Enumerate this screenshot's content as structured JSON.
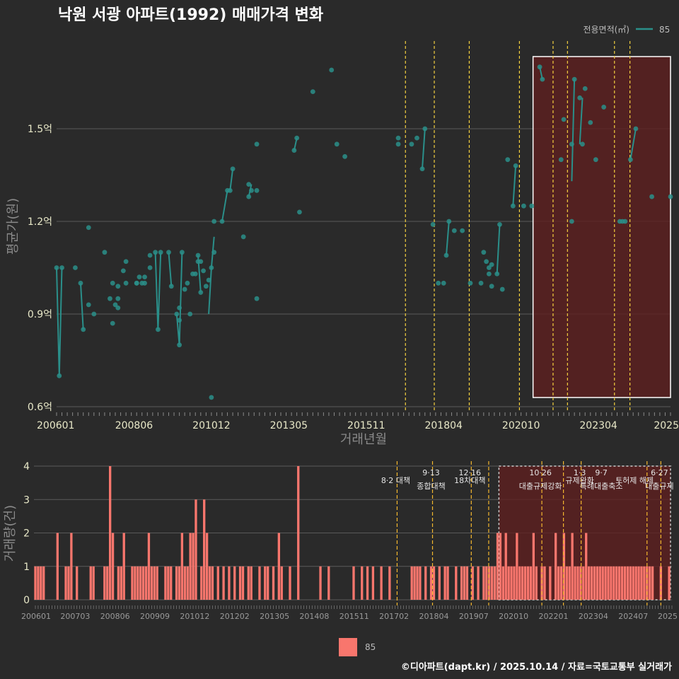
{
  "title": "낙원 서광 아파트(1992) 매매가격 변화",
  "footer": "©디아파트(dapt.kr) / 2025.10.14 / 자료=국토교통부 실거래가",
  "colors": {
    "price": "#2a8f8a",
    "volume": "#f8766d",
    "policy": "#f4d03f",
    "policy_lower": "#f5b82e",
    "highlight_fill": "#5e1f1f"
  },
  "chart_data": [
    {
      "type": "line",
      "name": "price",
      "xlabel": "거래년월",
      "ylabel": "평균가(원)",
      "ylim": [
        0.6,
        1.74
      ],
      "yticks": [
        {
          "v": 0.6,
          "label": "0.6억"
        },
        {
          "v": 0.9,
          "label": "0.9억"
        },
        {
          "v": 1.2,
          "label": "1.2억"
        },
        {
          "v": 1.5,
          "label": "1.5억"
        }
      ],
      "xticks": [
        "200601",
        "200806",
        "201012",
        "201305",
        "201511",
        "201804",
        "202010",
        "202304",
        "2025"
      ],
      "legend": {
        "title": "전용면적(㎡)",
        "series": "85"
      },
      "highlight": {
        "from": 178.5,
        "to": 230
      },
      "policy_lines": [
        130.7,
        141.5,
        154.6,
        173.4,
        186,
        191.4,
        209,
        214.8
      ],
      "points": [
        [
          0,
          1.05
        ],
        [
          1,
          0.7
        ],
        [
          2,
          1.05
        ],
        [
          7,
          1.05
        ],
        [
          9,
          1.0
        ],
        [
          10,
          0.85
        ],
        [
          12,
          1.18
        ],
        [
          12,
          0.93
        ],
        [
          14,
          0.9
        ],
        [
          18,
          1.1
        ],
        [
          20,
          0.95
        ],
        [
          21,
          1.0
        ],
        [
          21,
          0.87
        ],
        [
          22,
          0.93
        ],
        [
          23,
          0.99
        ],
        [
          23,
          0.95
        ],
        [
          23,
          0.92
        ],
        [
          25,
          1.04
        ],
        [
          26,
          1.07
        ],
        [
          26,
          1.0
        ],
        [
          30,
          1.0
        ],
        [
          30,
          1.0
        ],
        [
          31,
          1.02
        ],
        [
          32,
          1.0
        ],
        [
          33,
          1.0
        ],
        [
          33,
          1.02
        ],
        [
          35,
          1.05
        ],
        [
          35,
          1.09
        ],
        [
          37,
          1.1
        ],
        [
          38,
          0.85
        ],
        [
          39,
          1.1
        ],
        [
          42,
          1.1
        ],
        [
          43,
          0.99
        ],
        [
          45,
          0.9
        ],
        [
          46,
          0.92
        ],
        [
          46,
          0.88
        ],
        [
          46,
          0.8
        ],
        [
          47,
          1.1
        ],
        [
          48,
          0.98
        ],
        [
          49,
          1.0
        ],
        [
          50,
          0.9
        ],
        [
          51,
          1.03
        ],
        [
          52,
          1.03
        ],
        [
          53,
          1.09
        ],
        [
          53,
          1.07
        ],
        [
          54,
          1.07
        ],
        [
          54,
          0.97
        ],
        [
          55,
          1.04
        ],
        [
          56,
          0.99
        ],
        [
          57,
          1.01
        ],
        [
          58,
          1.05
        ],
        [
          58,
          0.63
        ],
        [
          59,
          1.2
        ],
        [
          59,
          1.1
        ],
        [
          62,
          1.2
        ],
        [
          64,
          1.3
        ],
        [
          65,
          1.3
        ],
        [
          66,
          1.37
        ],
        [
          70,
          1.15
        ],
        [
          72,
          1.28
        ],
        [
          72,
          1.32
        ],
        [
          73,
          1.3
        ],
        [
          75,
          1.3
        ],
        [
          75,
          1.45
        ],
        [
          75,
          0.95
        ],
        [
          89,
          1.43
        ],
        [
          90,
          1.47
        ],
        [
          91,
          1.23
        ],
        [
          96,
          1.62
        ],
        [
          103,
          1.69
        ],
        [
          105,
          1.45
        ],
        [
          108,
          1.41
        ],
        [
          128,
          1.45
        ],
        [
          128,
          1.47
        ],
        [
          133,
          1.45
        ],
        [
          135,
          1.47
        ],
        [
          137,
          1.37
        ],
        [
          138,
          1.5
        ],
        [
          141,
          1.19
        ],
        [
          143,
          1.0
        ],
        [
          145,
          1.0
        ],
        [
          146,
          1.09
        ],
        [
          147,
          1.2
        ],
        [
          149,
          1.17
        ],
        [
          152,
          1.17
        ],
        [
          155,
          1.0
        ],
        [
          159,
          1.0
        ],
        [
          160,
          1.1
        ],
        [
          161,
          1.07
        ],
        [
          162,
          1.05
        ],
        [
          162,
          1.03
        ],
        [
          163,
          1.06
        ],
        [
          163,
          0.99
        ],
        [
          165,
          1.03
        ],
        [
          166,
          1.19
        ],
        [
          167,
          0.98
        ],
        [
          169,
          1.4
        ],
        [
          171,
          1.25
        ],
        [
          172,
          1.38
        ],
        [
          175,
          1.25
        ],
        [
          178,
          1.25
        ],
        [
          181,
          1.7
        ],
        [
          182,
          1.66
        ],
        [
          189,
          1.4
        ],
        [
          190,
          1.53
        ],
        [
          193,
          1.45
        ],
        [
          193,
          1.2
        ],
        [
          194,
          1.66
        ],
        [
          196,
          1.6
        ],
        [
          197,
          1.45
        ],
        [
          198,
          1.63
        ],
        [
          200,
          1.52
        ],
        [
          202,
          1.4
        ],
        [
          205,
          1.57
        ],
        [
          211,
          1.2
        ],
        [
          212,
          1.2
        ],
        [
          213,
          1.2
        ],
        [
          215,
          1.4
        ],
        [
          217,
          1.5
        ],
        [
          223,
          1.28
        ],
        [
          230,
          1.28
        ]
      ],
      "lines": [
        [
          [
            0,
            1.05
          ],
          [
            1,
            0.7
          ],
          [
            2,
            1.05
          ]
        ],
        [
          [
            9,
            1.0
          ],
          [
            10,
            0.85
          ]
        ],
        [
          [
            37,
            1.1
          ],
          [
            38,
            0.85
          ],
          [
            39,
            1.1
          ]
        ],
        [
          [
            42,
            1.1
          ],
          [
            43,
            0.99
          ]
        ],
        [
          [
            45,
            0.9
          ],
          [
            46,
            0.8
          ],
          [
            47,
            1.1
          ]
        ],
        [
          [
            53,
            1.09
          ],
          [
            54,
            0.97
          ]
        ],
        [
          [
            57,
            0.9
          ],
          [
            58,
            1.05
          ],
          [
            59,
            1.15
          ]
        ],
        [
          [
            62,
            1.2
          ],
          [
            64,
            1.3
          ]
        ],
        [
          [
            65,
            1.3
          ],
          [
            66,
            1.37
          ]
        ],
        [
          [
            72,
            1.28
          ],
          [
            73,
            1.32
          ]
        ],
        [
          [
            89,
            1.43
          ],
          [
            90,
            1.47
          ]
        ],
        [
          [
            137,
            1.37
          ],
          [
            138,
            1.5
          ]
        ],
        [
          [
            146,
            1.09
          ],
          [
            147,
            1.2
          ]
        ],
        [
          [
            165,
            1.03
          ],
          [
            166,
            1.19
          ]
        ],
        [
          [
            171,
            1.25
          ],
          [
            172,
            1.38
          ]
        ],
        [
          [
            181,
            1.7
          ],
          [
            182,
            1.66
          ]
        ],
        [
          [
            193,
            1.33
          ],
          [
            194,
            1.66
          ]
        ],
        [
          [
            196,
            1.45
          ],
          [
            197,
            1.6
          ]
        ],
        [
          [
            215,
            1.4
          ],
          [
            217,
            1.5
          ]
        ]
      ]
    },
    {
      "type": "bar",
      "name": "volume",
      "ylabel": "거래량(건)",
      "ylim": [
        0,
        4
      ],
      "yticks": [
        "0",
        "1",
        "2",
        "3",
        "4"
      ],
      "xticks": [
        "200601",
        "200703",
        "200806",
        "200909",
        "201012",
        "201202",
        "201305",
        "201408",
        "201511",
        "201702",
        "201804",
        "201907",
        "202010",
        "202201",
        "202304",
        "202407",
        "2025"
      ],
      "legend": {
        "series": "85"
      },
      "policy_lines": [
        130.7,
        143.5,
        157.5,
        163.8,
        183,
        190.8,
        197.2,
        221,
        226
      ],
      "highlight": {
        "from": 168,
        "to": 230
      },
      "annotations": [
        {
          "x": 130.7,
          "date": "",
          "text": "8·2 대책"
        },
        {
          "x": 143.5,
          "date": "9·13",
          "text": "종합대책"
        },
        {
          "x": 157.5,
          "date": "12·16",
          "text": "18차대책"
        },
        {
          "x": 183,
          "date": "10·26",
          "text": "대출규제강화"
        },
        {
          "x": 197.2,
          "date": "1·3",
          "text": "규제완화"
        },
        {
          "x": 205,
          "date": "9·7",
          "text": "특례대출축소"
        },
        {
          "x": 217,
          "date": "",
          "text": "토허제 해제"
        },
        {
          "x": 226,
          "date": "6·27",
          "text": "대출규제"
        }
      ],
      "bars": [
        [
          0,
          1
        ],
        [
          1,
          1
        ],
        [
          2,
          1
        ],
        [
          3,
          1
        ],
        [
          8,
          2
        ],
        [
          11,
          1
        ],
        [
          12,
          1
        ],
        [
          13,
          2
        ],
        [
          15,
          1
        ],
        [
          20,
          1
        ],
        [
          21,
          1
        ],
        [
          25,
          1
        ],
        [
          26,
          1
        ],
        [
          27,
          4
        ],
        [
          28,
          2
        ],
        [
          30,
          1
        ],
        [
          31,
          1
        ],
        [
          32,
          2
        ],
        [
          35,
          1
        ],
        [
          36,
          1
        ],
        [
          37,
          1
        ],
        [
          38,
          1
        ],
        [
          39,
          1
        ],
        [
          40,
          1
        ],
        [
          41,
          2
        ],
        [
          42,
          1
        ],
        [
          43,
          1
        ],
        [
          44,
          1
        ],
        [
          47,
          1
        ],
        [
          48,
          1
        ],
        [
          49,
          1
        ],
        [
          51,
          1
        ],
        [
          52,
          1
        ],
        [
          53,
          2
        ],
        [
          54,
          1
        ],
        [
          55,
          1
        ],
        [
          56,
          2
        ],
        [
          57,
          2
        ],
        [
          58,
          3
        ],
        [
          60,
          1
        ],
        [
          61,
          3
        ],
        [
          62,
          2
        ],
        [
          63,
          1
        ],
        [
          64,
          1
        ],
        [
          66,
          1
        ],
        [
          68,
          1
        ],
        [
          70,
          1
        ],
        [
          72,
          1
        ],
        [
          74,
          1
        ],
        [
          75,
          1
        ],
        [
          77,
          1
        ],
        [
          78,
          1
        ],
        [
          81,
          1
        ],
        [
          83,
          1
        ],
        [
          84,
          1
        ],
        [
          86,
          1
        ],
        [
          88,
          2
        ],
        [
          89,
          1
        ],
        [
          92,
          1
        ],
        [
          95,
          4
        ],
        [
          103,
          1
        ],
        [
          106,
          1
        ],
        [
          115,
          1
        ],
        [
          118,
          1
        ],
        [
          120,
          1
        ],
        [
          122,
          1
        ],
        [
          125,
          1
        ],
        [
          128,
          1
        ],
        [
          136,
          1
        ],
        [
          137,
          1
        ],
        [
          138,
          1
        ],
        [
          139,
          1
        ],
        [
          141,
          1
        ],
        [
          143,
          1
        ],
        [
          144,
          1
        ],
        [
          146,
          1
        ],
        [
          148,
          1
        ],
        [
          149,
          1
        ],
        [
          152,
          1
        ],
        [
          154,
          1
        ],
        [
          155,
          1
        ],
        [
          156,
          1
        ],
        [
          158,
          1
        ],
        [
          160,
          1
        ],
        [
          162,
          1
        ],
        [
          163,
          1
        ],
        [
          164,
          1
        ],
        [
          165,
          1
        ],
        [
          166,
          1
        ],
        [
          167,
          2
        ],
        [
          168,
          2
        ],
        [
          169,
          1
        ],
        [
          170,
          2
        ],
        [
          171,
          1
        ],
        [
          172,
          1
        ],
        [
          173,
          1
        ],
        [
          174,
          2
        ],
        [
          175,
          1
        ],
        [
          176,
          1
        ],
        [
          177,
          1
        ],
        [
          178,
          1
        ],
        [
          179,
          1
        ],
        [
          180,
          2
        ],
        [
          181,
          1
        ],
        [
          183,
          1
        ],
        [
          184,
          1
        ],
        [
          186,
          1
        ],
        [
          188,
          2
        ],
        [
          189,
          1
        ],
        [
          190,
          1
        ],
        [
          191,
          2
        ],
        [
          192,
          1
        ],
        [
          193,
          1
        ],
        [
          194,
          2
        ],
        [
          195,
          1
        ],
        [
          196,
          1
        ],
        [
          197,
          1
        ],
        [
          198,
          1
        ],
        [
          199,
          2
        ],
        [
          200,
          1
        ],
        [
          201,
          1
        ],
        [
          202,
          1
        ],
        [
          203,
          1
        ],
        [
          204,
          1
        ],
        [
          205,
          1
        ],
        [
          206,
          1
        ],
        [
          207,
          1
        ],
        [
          208,
          1
        ],
        [
          209,
          1
        ],
        [
          210,
          1
        ],
        [
          211,
          1
        ],
        [
          212,
          1
        ],
        [
          213,
          1
        ],
        [
          214,
          1
        ],
        [
          215,
          1
        ],
        [
          216,
          1
        ],
        [
          217,
          1
        ],
        [
          218,
          1
        ],
        [
          219,
          1
        ],
        [
          220,
          1
        ],
        [
          221,
          1
        ],
        [
          222,
          1
        ],
        [
          223,
          1
        ],
        [
          226,
          1
        ],
        [
          229,
          1
        ]
      ]
    }
  ]
}
